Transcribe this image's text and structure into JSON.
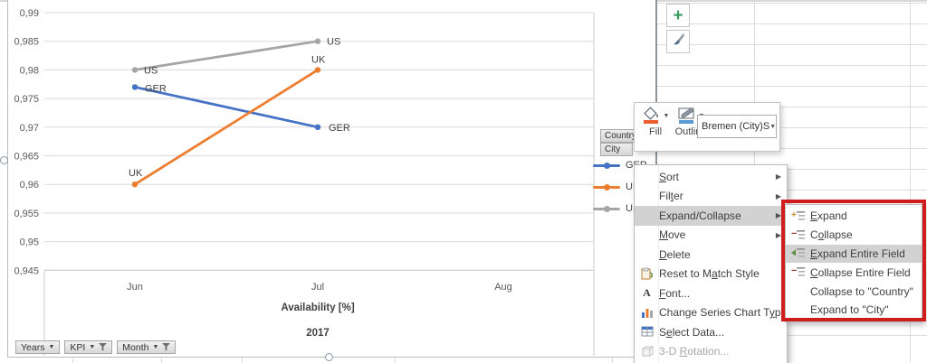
{
  "chart_data": {
    "type": "line",
    "categories": [
      "Jun",
      "Jul",
      "Aug"
    ],
    "series": [
      {
        "name": "GER",
        "color": "#4472C4",
        "values": [
          0.977,
          0.97,
          null
        ]
      },
      {
        "name": "UK",
        "color": "#ED7D31",
        "values": [
          0.96,
          0.98,
          null
        ]
      },
      {
        "name": "US",
        "color": "#A5A5A5",
        "values": [
          0.98,
          0.985,
          null
        ]
      }
    ],
    "ylim": [
      0.945,
      0.99
    ],
    "ytick_step": 0.005,
    "ytick_labels": [
      "0,99",
      "0,985",
      "0,98",
      "0,975",
      "0,97",
      "0,965",
      "0,96",
      "0,955",
      "0,95",
      "0,945"
    ],
    "grid": true,
    "point_labels": true,
    "legend_position": "right",
    "axis_group_title": "Availability [%]",
    "axis_year_title": "2017"
  },
  "legend": {
    "field_buttons": [
      {
        "label": "Country"
      },
      {
        "label": "City"
      }
    ],
    "entries": [
      {
        "label": "GER",
        "color": "#4472C4"
      },
      {
        "label": "UK",
        "color": "#ED7D31"
      },
      {
        "label": "US",
        "color": "#A5A5A5"
      }
    ]
  },
  "side_buttons": {
    "elements_glyph": "+",
    "styles_icon": "paintbrush"
  },
  "mini_toolbar": {
    "fill_label": "Fill",
    "outline_label": "Outline",
    "fill_color": "#ED5C2B",
    "outline_color": "#5B9BD5",
    "selection_dropdown": "Bremen (City)S"
  },
  "context_menu": {
    "items": [
      {
        "label": "Sort",
        "mnemonic": 0,
        "submenu": true
      },
      {
        "label": "Filter",
        "mnemonic": 3,
        "submenu": true
      },
      {
        "label": "Expand/Collapse",
        "submenu": true,
        "highlighted": true
      },
      {
        "label": "Move",
        "mnemonic": 0,
        "submenu": true
      },
      {
        "label": "Delete",
        "mnemonic": 0
      },
      {
        "label": "Reset to Match Style",
        "mnemonic": 10,
        "icon": "reset-style"
      },
      {
        "label": "Font...",
        "mnemonic": 0,
        "icon": "font"
      },
      {
        "label": "Change Series Chart Type...",
        "mnemonic": 21,
        "icon": "chart-type"
      },
      {
        "label": "Select Data...",
        "mnemonic": 1,
        "icon": "select-data"
      },
      {
        "label": "3-D Rotation...",
        "mnemonic": 4,
        "icon": "rotation",
        "disabled": true
      }
    ]
  },
  "submenu": {
    "highlight_border_color": "#CF1D1D",
    "items": [
      {
        "label": "Expand",
        "mnemonic": 0,
        "icon": "expand"
      },
      {
        "label": "Collapse",
        "mnemonic": 1,
        "icon": "collapse"
      },
      {
        "label": "Expand Entire Field",
        "mnemonic": 0,
        "icon": "expand-entire",
        "highlighted": true
      },
      {
        "label": "Collapse Entire Field",
        "mnemonic": 0,
        "icon": "collapse-entire"
      },
      {
        "label": "Collapse to \"Country\""
      },
      {
        "label": "Expand to \"City\""
      }
    ]
  },
  "pivot_buttons": [
    {
      "label": "Years",
      "has_filter": false
    },
    {
      "label": "KPI",
      "has_filter": true
    },
    {
      "label": "Month",
      "has_filter": true
    }
  ]
}
